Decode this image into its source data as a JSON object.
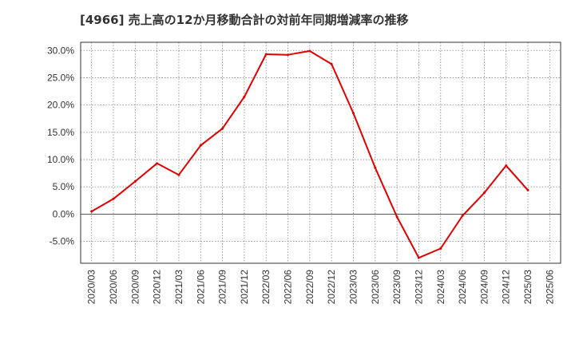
{
  "chart_data": {
    "type": "line",
    "title": "[4966]  売上高の12か月移動合計の対前年同期増減率の推移",
    "xlabel": "",
    "ylabel": "",
    "ylim": [
      -9,
      31.5
    ],
    "yticks": [
      -5,
      0,
      5,
      10,
      15,
      20,
      25,
      30
    ],
    "ytick_labels": [
      "-5.0%",
      "0.0%",
      "5.0%",
      "10.0%",
      "15.0%",
      "20.0%",
      "25.0%",
      "30.0%"
    ],
    "categories": [
      "2020/03",
      "2020/06",
      "2020/09",
      "2020/12",
      "2021/03",
      "2021/06",
      "2021/09",
      "2021/12",
      "2022/03",
      "2022/06",
      "2022/09",
      "2022/12",
      "2023/03",
      "2023/06",
      "2023/09",
      "2023/12",
      "2024/03",
      "2024/06",
      "2024/09",
      "2024/12",
      "2025/03",
      "2025/06"
    ],
    "series": [
      {
        "name": "対前年同期増減率",
        "color": "#e00000",
        "values": [
          0.5,
          2.8,
          6.0,
          9.3,
          7.2,
          12.6,
          15.7,
          21.5,
          29.3,
          29.2,
          29.9,
          27.5,
          18.5,
          8.5,
          -0.5,
          -8.0,
          -6.3,
          -0.3,
          3.9,
          8.9,
          4.4,
          null
        ]
      }
    ],
    "grid": true,
    "legend": "none"
  }
}
